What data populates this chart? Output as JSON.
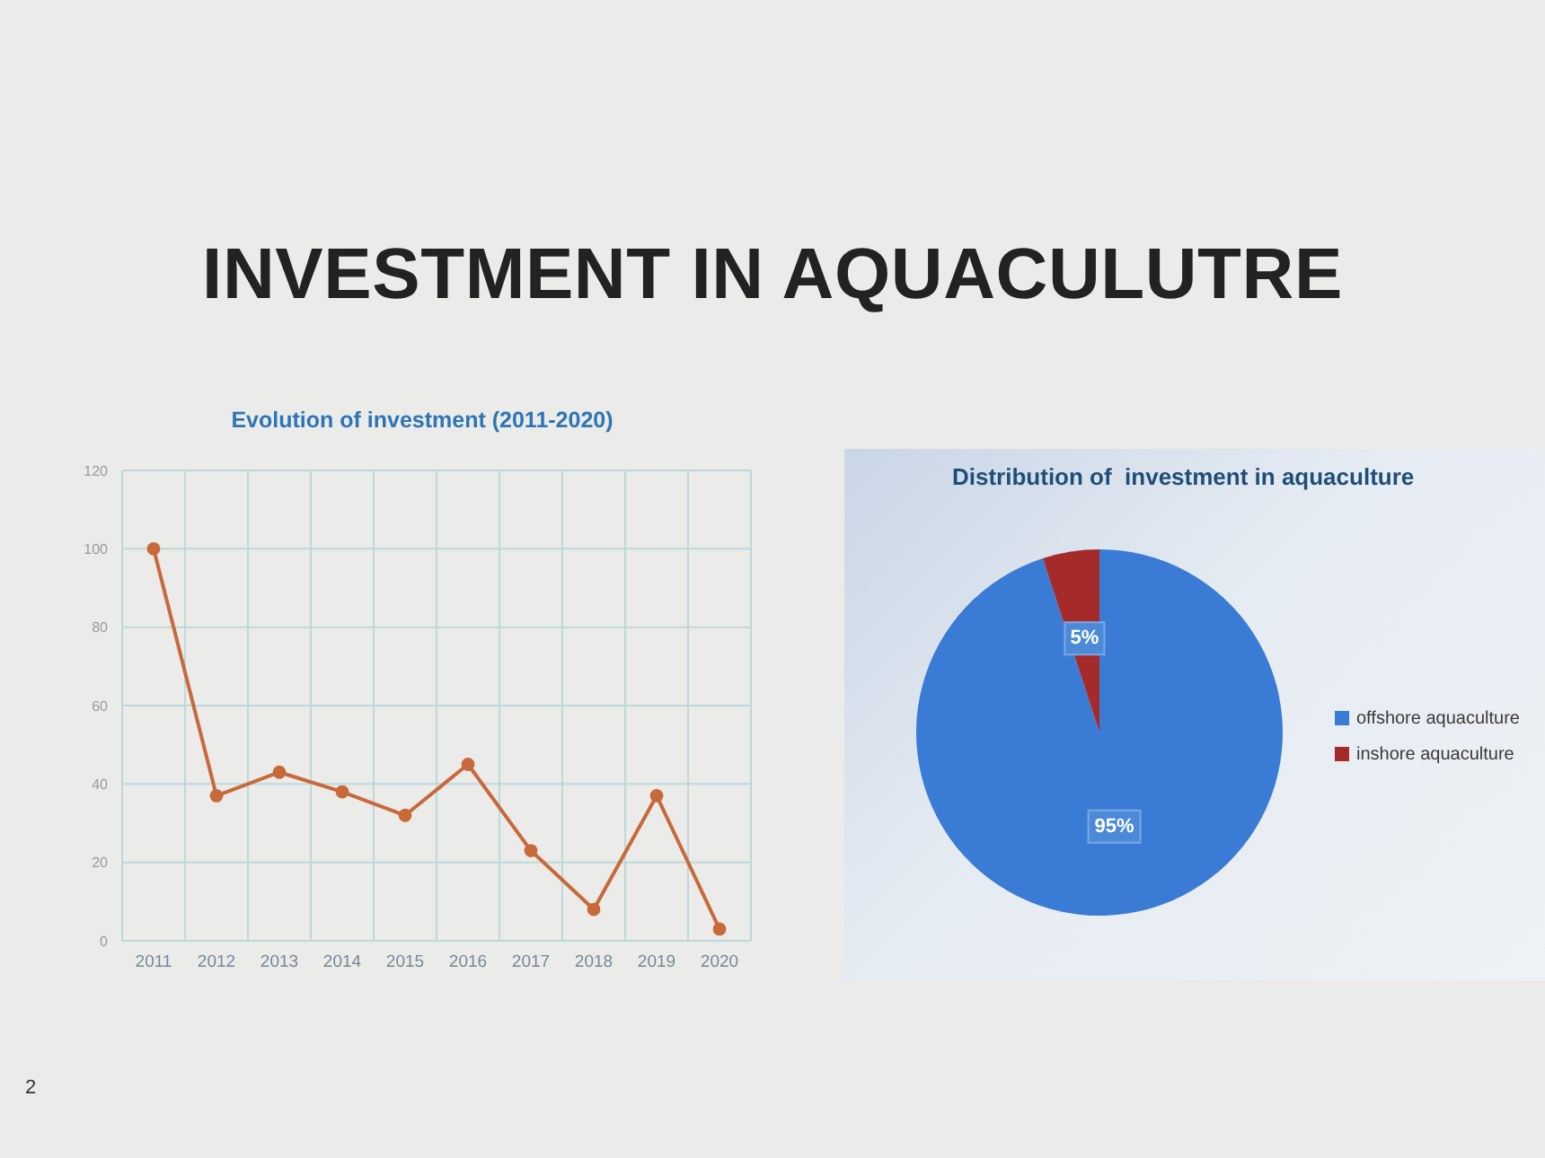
{
  "chart_data": [
    {
      "type": "other",
      "title": "INVESTMENT IN AQUACULUTRE"
    },
    {
      "type": "line",
      "title": "Evolution of investment (2011-2020)",
      "categories": [
        "2011",
        "2012",
        "2013",
        "2014",
        "2015",
        "2016",
        "2017",
        "2018",
        "2019",
        "2020"
      ],
      "values": [
        100,
        37,
        43,
        38,
        32,
        45,
        23,
        8,
        37,
        3
      ],
      "color": "#c8693a",
      "ylim": [
        0,
        120
      ],
      "yticks": [
        0,
        20,
        40,
        60,
        80,
        100,
        120
      ],
      "grid": true,
      "marker": "circle",
      "line_style": "solid",
      "annotations": [
        "2"
      ]
    },
    {
      "type": "pie",
      "title": "Distribution of  investment in aquaculture",
      "categories": [
        "offshore aquaculture",
        "inshore aquaculture"
      ],
      "values": [
        95,
        5
      ],
      "colors": [
        "#3a7bd5",
        "#a52a2a"
      ],
      "value_labels": [
        "95%",
        "5%"
      ],
      "legend": "right"
    }
  ]
}
